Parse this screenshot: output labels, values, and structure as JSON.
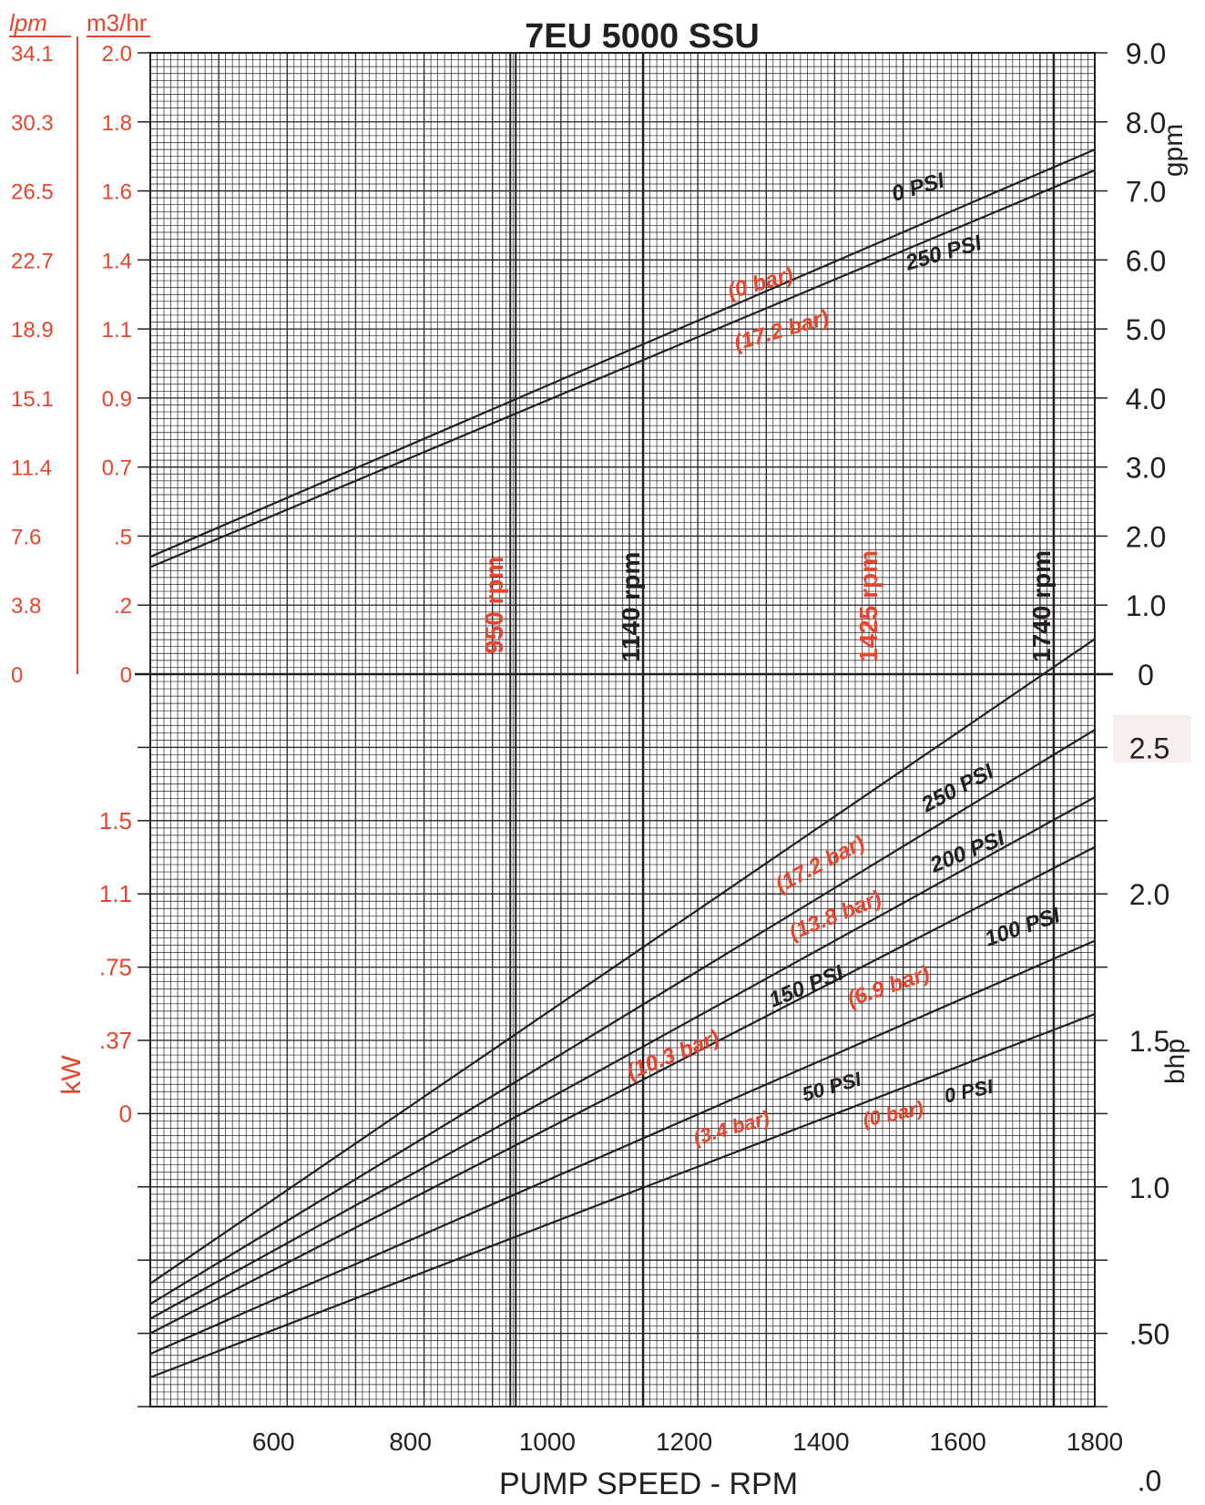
{
  "chart_data": [
    {
      "type": "line",
      "title": "7EU 5000 SSU",
      "xlabel": "",
      "ylabel_right": "gpm",
      "ylabel_left": [
        "lpm",
        "m3/hr"
      ],
      "xlim": [
        420,
        1800
      ],
      "ylim": [
        0,
        9
      ],
      "right_ticks": [
        "9.0",
        "8.0",
        "7.0",
        "6.0",
        "5.0",
        "4.0",
        "3.0",
        "2.0",
        "1.0",
        "0"
      ],
      "lpm_ticks": [
        "34.1",
        "30.3",
        "26.5",
        "22.7",
        "18.9",
        "15.1",
        "11.4",
        "7.6",
        "3.8",
        "0"
      ],
      "m3hr_ticks": [
        "2.0",
        "1.8",
        "1.6",
        "1.4",
        "1.1",
        "0.9",
        "0.7",
        ".5",
        ".2",
        "0"
      ],
      "grid": true,
      "series": [
        {
          "name": "0 PSI",
          "alt_name": "(0 bar)",
          "x": [
            420,
            1800
          ],
          "y": [
            1.7,
            7.6
          ]
        },
        {
          "name": "250 PSI",
          "alt_name": "(17.2 bar)",
          "x": [
            420,
            1800
          ],
          "y": [
            1.55,
            7.3
          ]
        }
      ]
    },
    {
      "type": "line",
      "xlabel": "PUMP SPEED - RPM",
      "ylabel_right": "bhp",
      "ylabel_left": "kW",
      "xlim": [
        420,
        1800
      ],
      "ylim": [
        0,
        2.5
      ],
      "x_ticks": [
        "600",
        "800",
        "1000",
        "1200",
        "1400",
        "1600",
        "1800"
      ],
      "right_ticks": [
        "2.5",
        "2.0",
        "1.5",
        "1.0",
        ".50",
        ".0"
      ],
      "kw_ticks": [
        "1.5",
        "1.1",
        ".75",
        ".37",
        "0"
      ],
      "grid": true,
      "series": [
        {
          "name": "250 PSI",
          "alt_name": "(17.2 bar)",
          "x": [
            420,
            1800
          ],
          "y": [
            0.42,
            2.62
          ]
        },
        {
          "name": "200 PSI",
          "alt_name": "(13.8 bar)",
          "x": [
            420,
            1800
          ],
          "y": [
            0.35,
            2.31
          ]
        },
        {
          "name": "150 PSI",
          "alt_name": "(10.3 bar)",
          "x": [
            420,
            1800
          ],
          "y": [
            0.3,
            2.08
          ]
        },
        {
          "name": "100 PSI",
          "alt_name": "(6.9 bar)",
          "x": [
            420,
            1800
          ],
          "y": [
            0.25,
            1.91
          ]
        },
        {
          "name": "50 PSI",
          "alt_name": "(3.4 bar)",
          "x": [
            420,
            1800
          ],
          "y": [
            0.18,
            1.59
          ]
        },
        {
          "name": "0 PSI",
          "alt_name": "(0 bar)",
          "x": [
            420,
            1800
          ],
          "y": [
            0.1,
            1.34
          ]
        }
      ]
    }
  ],
  "speed_markers": [
    {
      "rpm": 950,
      "label": "950 rpm",
      "color": "#e8452c",
      "line": "double"
    },
    {
      "rpm": 1140,
      "label": "1140 rpm",
      "color": "#231f20",
      "line": "single"
    },
    {
      "rpm": 1425,
      "label": "1425 rpm",
      "color": "#e8452c",
      "line": "none"
    },
    {
      "rpm": 1740,
      "label": "1740 rpm",
      "color": "#231f20",
      "line": "single"
    }
  ],
  "colors": {
    "metric": "#e8452c",
    "imperial": "#231f20",
    "grid": "#231f20",
    "highlight": "#f7eeee"
  }
}
